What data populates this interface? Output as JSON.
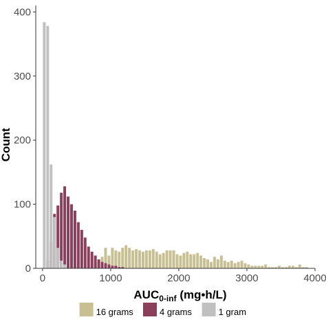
{
  "chart_data": {
    "type": "bar",
    "chart_subtype": "histogram",
    "xlabel": "AUC",
    "xlabel_subscript": "0-inf",
    "xlabel_suffix": " (mg•h/L)",
    "ylabel": "Count",
    "xlim": [
      -100,
      4000
    ],
    "ylim": [
      0,
      410
    ],
    "x_ticks": [
      0,
      1000,
      2000,
      3000,
      4000
    ],
    "x_tick_labels": [
      "0",
      "1000",
      "2000",
      "3000",
      "4000"
    ],
    "y_ticks": [
      0,
      100,
      200,
      300,
      400
    ],
    "y_tick_labels": [
      "0",
      "100",
      "200",
      "300",
      "400"
    ],
    "bin_width": 50,
    "grid": false,
    "legend_position": "bottom",
    "series": [
      {
        "name": "16 grams",
        "color": "#c8bf93",
        "bins": [
          [
            775,
            8
          ],
          [
            825,
            10
          ],
          [
            875,
            18
          ],
          [
            925,
            32
          ],
          [
            975,
            20
          ],
          [
            1025,
            32
          ],
          [
            1075,
            28
          ],
          [
            1125,
            26
          ],
          [
            1175,
            32
          ],
          [
            1225,
            36
          ],
          [
            1275,
            32
          ],
          [
            1325,
            28
          ],
          [
            1375,
            30
          ],
          [
            1425,
            28
          ],
          [
            1475,
            26
          ],
          [
            1525,
            28
          ],
          [
            1575,
            28
          ],
          [
            1625,
            30
          ],
          [
            1675,
            26
          ],
          [
            1725,
            22
          ],
          [
            1775,
            24
          ],
          [
            1825,
            28
          ],
          [
            1875,
            28
          ],
          [
            1925,
            28
          ],
          [
            1975,
            22
          ],
          [
            2025,
            20
          ],
          [
            2075,
            24
          ],
          [
            2125,
            26
          ],
          [
            2175,
            22
          ],
          [
            2225,
            22
          ],
          [
            2275,
            24
          ],
          [
            2325,
            20
          ],
          [
            2375,
            16
          ],
          [
            2425,
            14
          ],
          [
            2475,
            10
          ],
          [
            2525,
            18
          ],
          [
            2575,
            14
          ],
          [
            2625,
            20
          ],
          [
            2675,
            12
          ],
          [
            2725,
            10
          ],
          [
            2775,
            12
          ],
          [
            2825,
            8
          ],
          [
            2875,
            10
          ],
          [
            2925,
            12
          ],
          [
            2975,
            8
          ],
          [
            3025,
            6
          ],
          [
            3075,
            4
          ],
          [
            3125,
            4
          ],
          [
            3175,
            4
          ],
          [
            3225,
            4
          ],
          [
            3275,
            6
          ],
          [
            3325,
            2
          ],
          [
            3375,
            2
          ],
          [
            3425,
            2
          ],
          [
            3475,
            4
          ],
          [
            3525,
            2
          ],
          [
            3575,
            2
          ],
          [
            3625,
            4
          ],
          [
            3675,
            4
          ],
          [
            3725,
            2
          ],
          [
            3775,
            6
          ],
          [
            3825,
            2
          ],
          [
            3875,
            2
          ]
        ]
      },
      {
        "name": "4 grams",
        "color": "#8b3f5b",
        "bins": [
          [
            75,
            12
          ],
          [
            125,
            42
          ],
          [
            175,
            85
          ],
          [
            225,
            98
          ],
          [
            275,
            118
          ],
          [
            325,
            128
          ],
          [
            375,
            112
          ],
          [
            425,
            100
          ],
          [
            475,
            90
          ],
          [
            525,
            72
          ],
          [
            575,
            60
          ],
          [
            625,
            48
          ],
          [
            675,
            34
          ],
          [
            725,
            26
          ],
          [
            775,
            20
          ],
          [
            825,
            14
          ],
          [
            875,
            10
          ],
          [
            925,
            8
          ],
          [
            975,
            6
          ],
          [
            1025,
            4
          ],
          [
            1075,
            4
          ],
          [
            1125,
            2
          ],
          [
            1175,
            2
          ]
        ]
      },
      {
        "name": "1 gram",
        "color": "#c0c0c0",
        "bins": [
          [
            25,
            384
          ],
          [
            75,
            378
          ],
          [
            125,
            162
          ],
          [
            175,
            80
          ],
          [
            225,
            32
          ],
          [
            275,
            12
          ],
          [
            325,
            6
          ]
        ]
      }
    ]
  }
}
